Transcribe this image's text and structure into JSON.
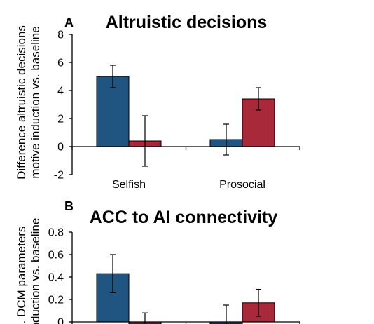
{
  "colors": {
    "series_1": "#1f5580",
    "series_2": "#a82a3a",
    "axis": "#000000",
    "error_bar": "#000000"
  },
  "chart_data": [
    {
      "type": "bar",
      "panel_letter": "A",
      "title": "Altruistic decisions",
      "ylabel_lines": [
        "Difference altruistic decisions",
        "motive induction vs. baseline"
      ],
      "categories": [
        "Selfish",
        "Prosocial"
      ],
      "series": [
        {
          "values": [
            5.0,
            0.5
          ],
          "errors": [
            0.8,
            1.1
          ]
        },
        {
          "values": [
            0.4,
            3.4
          ],
          "errors": [
            1.8,
            0.8
          ]
        }
      ],
      "ylim": [
        -2,
        8
      ],
      "yticks": [
        "-2",
        "0",
        "2",
        "4",
        "6",
        "8"
      ],
      "grid": false
    },
    {
      "type": "bar",
      "panel_letter": "B",
      "title": "ACC to AI connectivity",
      "ylabel_lines": [
        ". DCM parameters",
        "induction vs. baseline"
      ],
      "categories": [
        "",
        ""
      ],
      "series": [
        {
          "values": [
            0.43,
            -0.02
          ],
          "errors": [
            0.17,
            0.17
          ]
        },
        {
          "values": [
            -0.02,
            0.17
          ],
          "errors": [
            0.1,
            0.12
          ]
        }
      ],
      "ylim": [
        0,
        0.8
      ],
      "yticks": [
        "0",
        "0.2",
        "0.4",
        "0.6",
        "0.8"
      ],
      "grid": false
    }
  ]
}
